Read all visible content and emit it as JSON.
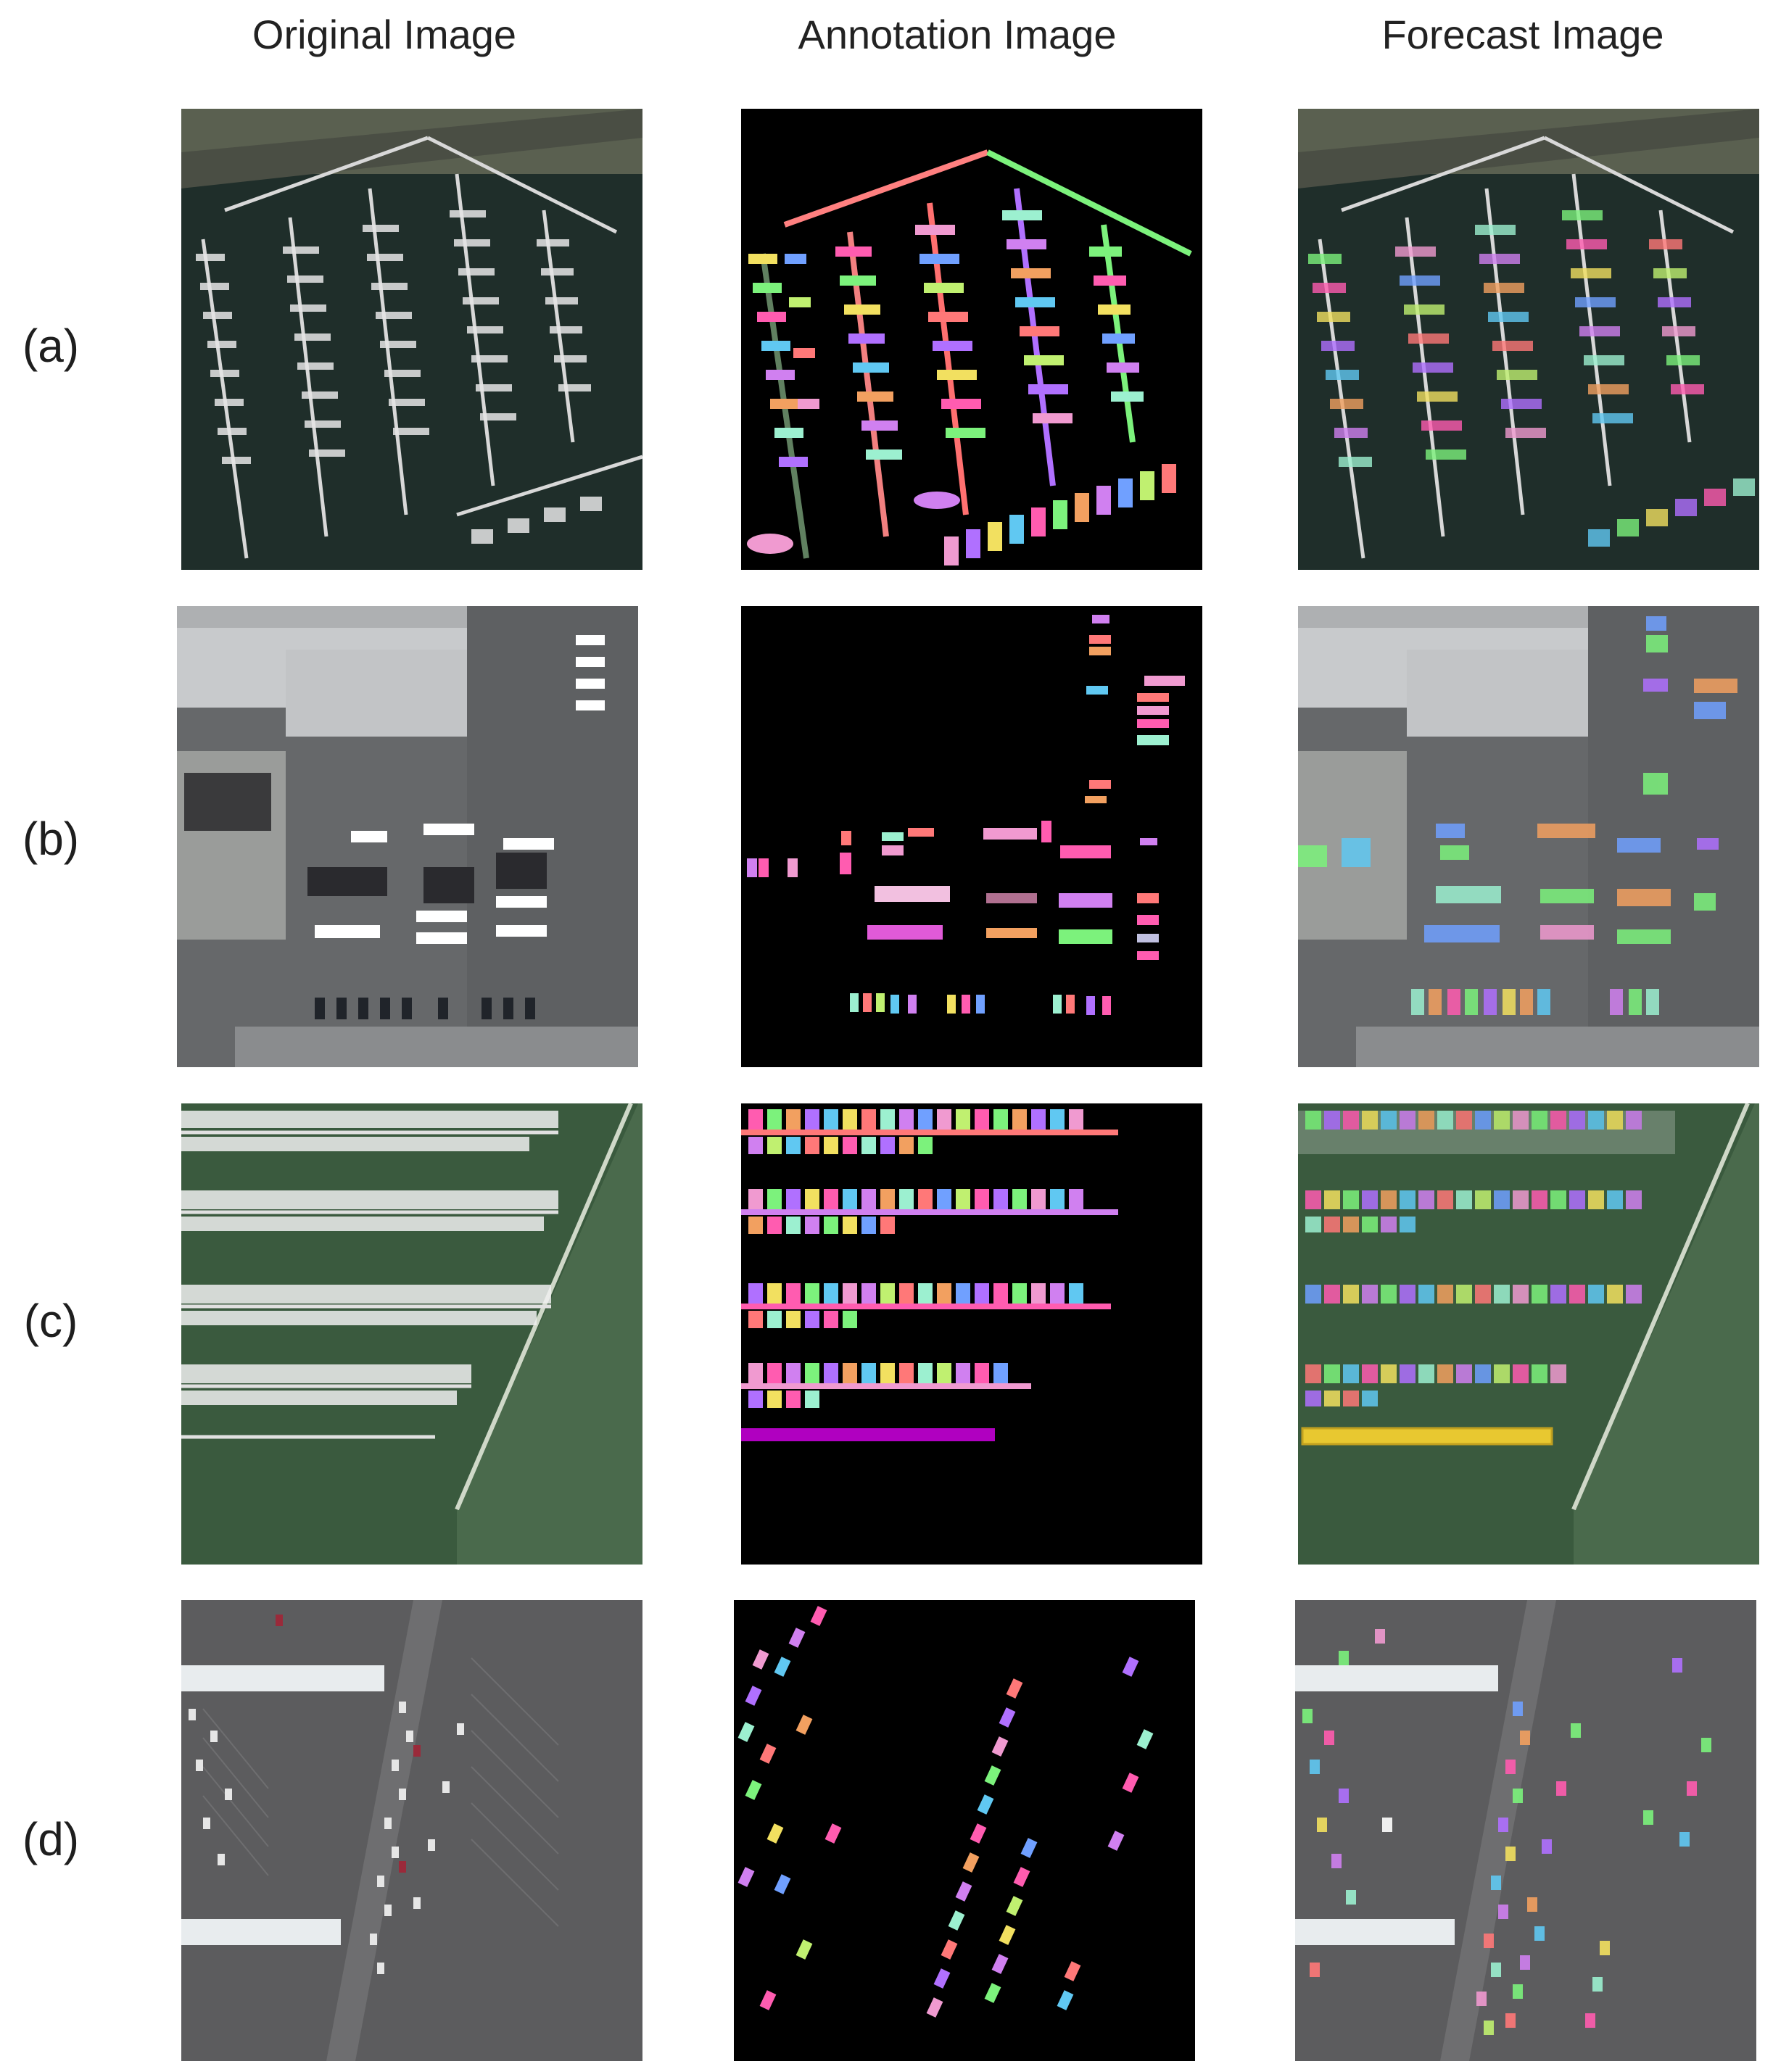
{
  "columns": {
    "original": "Original Image",
    "annotation": "Annotation Image",
    "forecast": "Forecast Image"
  },
  "rows": {
    "a": "(a)",
    "b": "(b)",
    "c": "(c)",
    "d": "(d)"
  },
  "palette": {
    "annotation_background": "#000000",
    "marina_water": "#1f2e2a",
    "harbor_water": "#3a5a3e",
    "parking_asphalt": "#5c5c5e",
    "lot_gray": "#66686a",
    "instance_colors": [
      "#ff5cb0",
      "#7cf27c",
      "#f2a060",
      "#b070ff",
      "#60c8f2",
      "#f2e060",
      "#ff7878",
      "#9cf0d0",
      "#d080f0",
      "#70a0ff",
      "#f09ad0",
      "#c0f070"
    ]
  }
}
